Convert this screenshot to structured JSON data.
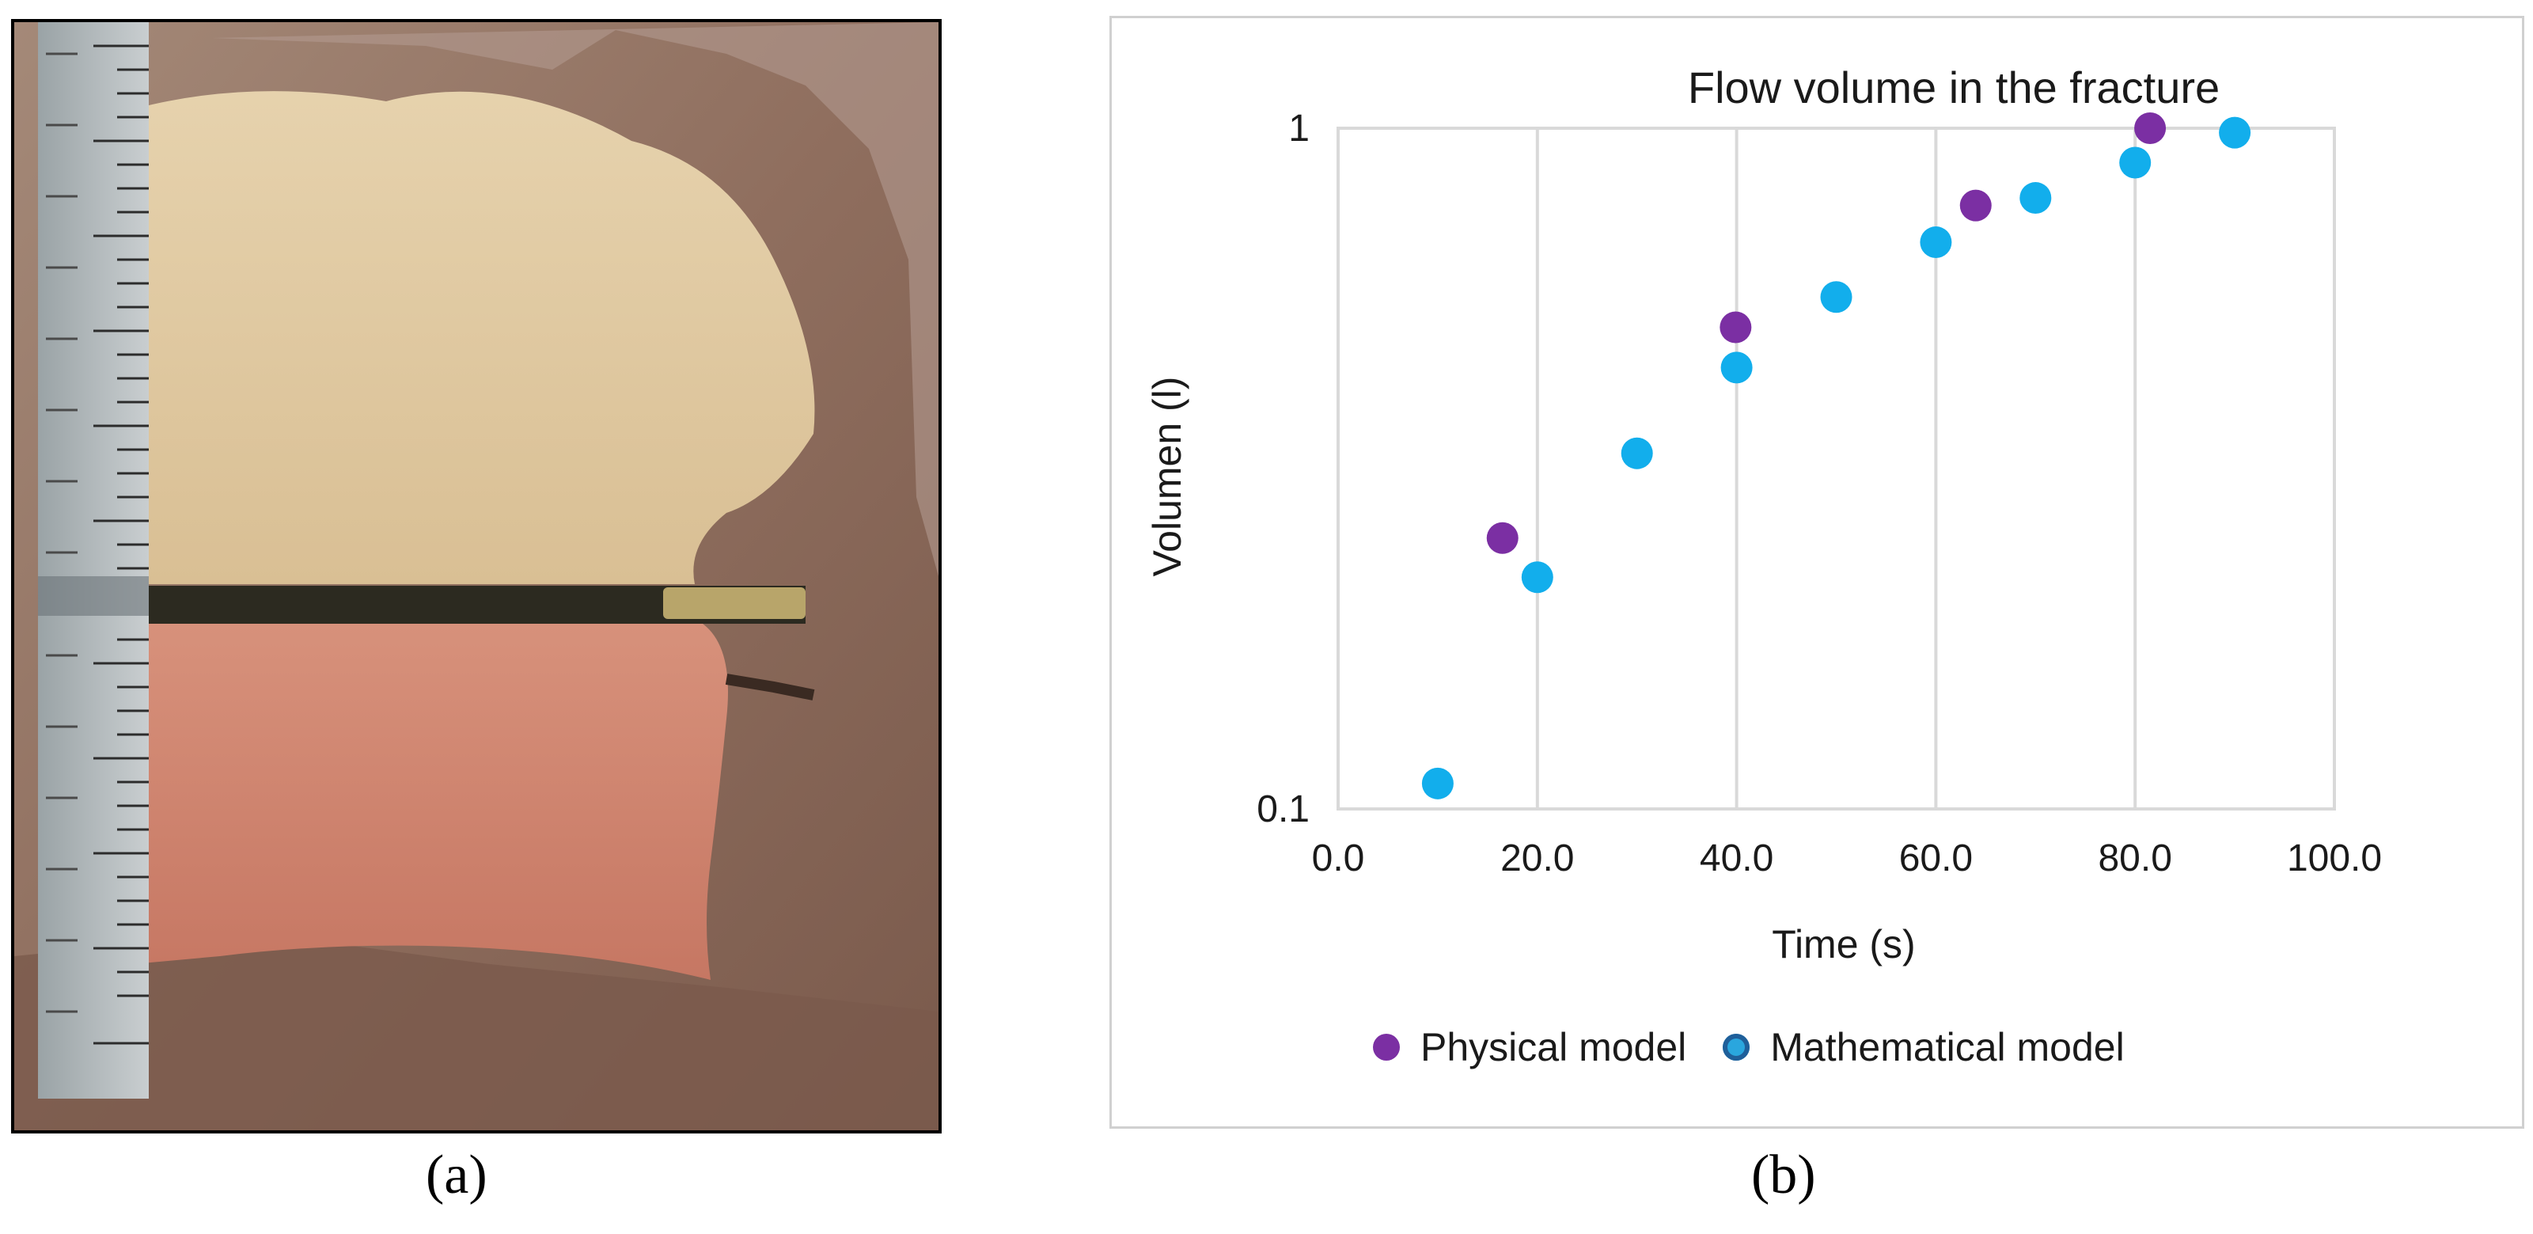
{
  "panel_a": {
    "caption": "(a)",
    "photo_label": "fractured sand sample with ruler"
  },
  "panel_b": {
    "caption": "(b)"
  },
  "colors": {
    "physical": "#7b2fa3",
    "mathematical": "#12aeec",
    "grid": "#d9d9d9",
    "border": "#d0d0d0"
  },
  "chart_data": {
    "type": "scatter",
    "title": "Flow volume in the fracture",
    "xlabel": "Time (s)",
    "ylabel": "Volumen (l)",
    "xlim": [
      0,
      100
    ],
    "ylim": [
      0.1,
      1
    ],
    "yscale": "log",
    "x_ticks": [
      "0.0",
      "20.0",
      "40.0",
      "60.0",
      "80.0",
      "100.0"
    ],
    "y_ticks": [
      "0.1",
      "1"
    ],
    "gridlines": "vertical",
    "legend_position": "bottom",
    "series": [
      {
        "name": "Physical model",
        "points": [
          [
            16.5,
            0.25
          ],
          [
            39.9,
            0.51
          ],
          [
            64,
            0.77
          ],
          [
            81.5,
            1.0
          ]
        ]
      },
      {
        "name": "Mathematical model",
        "points": [
          [
            10,
            0.109
          ],
          [
            20,
            0.219
          ],
          [
            30,
            0.333
          ],
          [
            40,
            0.445
          ],
          [
            50,
            0.565
          ],
          [
            60,
            0.68
          ],
          [
            70,
            0.79
          ],
          [
            80,
            0.89
          ],
          [
            90,
            0.985
          ]
        ]
      }
    ]
  }
}
